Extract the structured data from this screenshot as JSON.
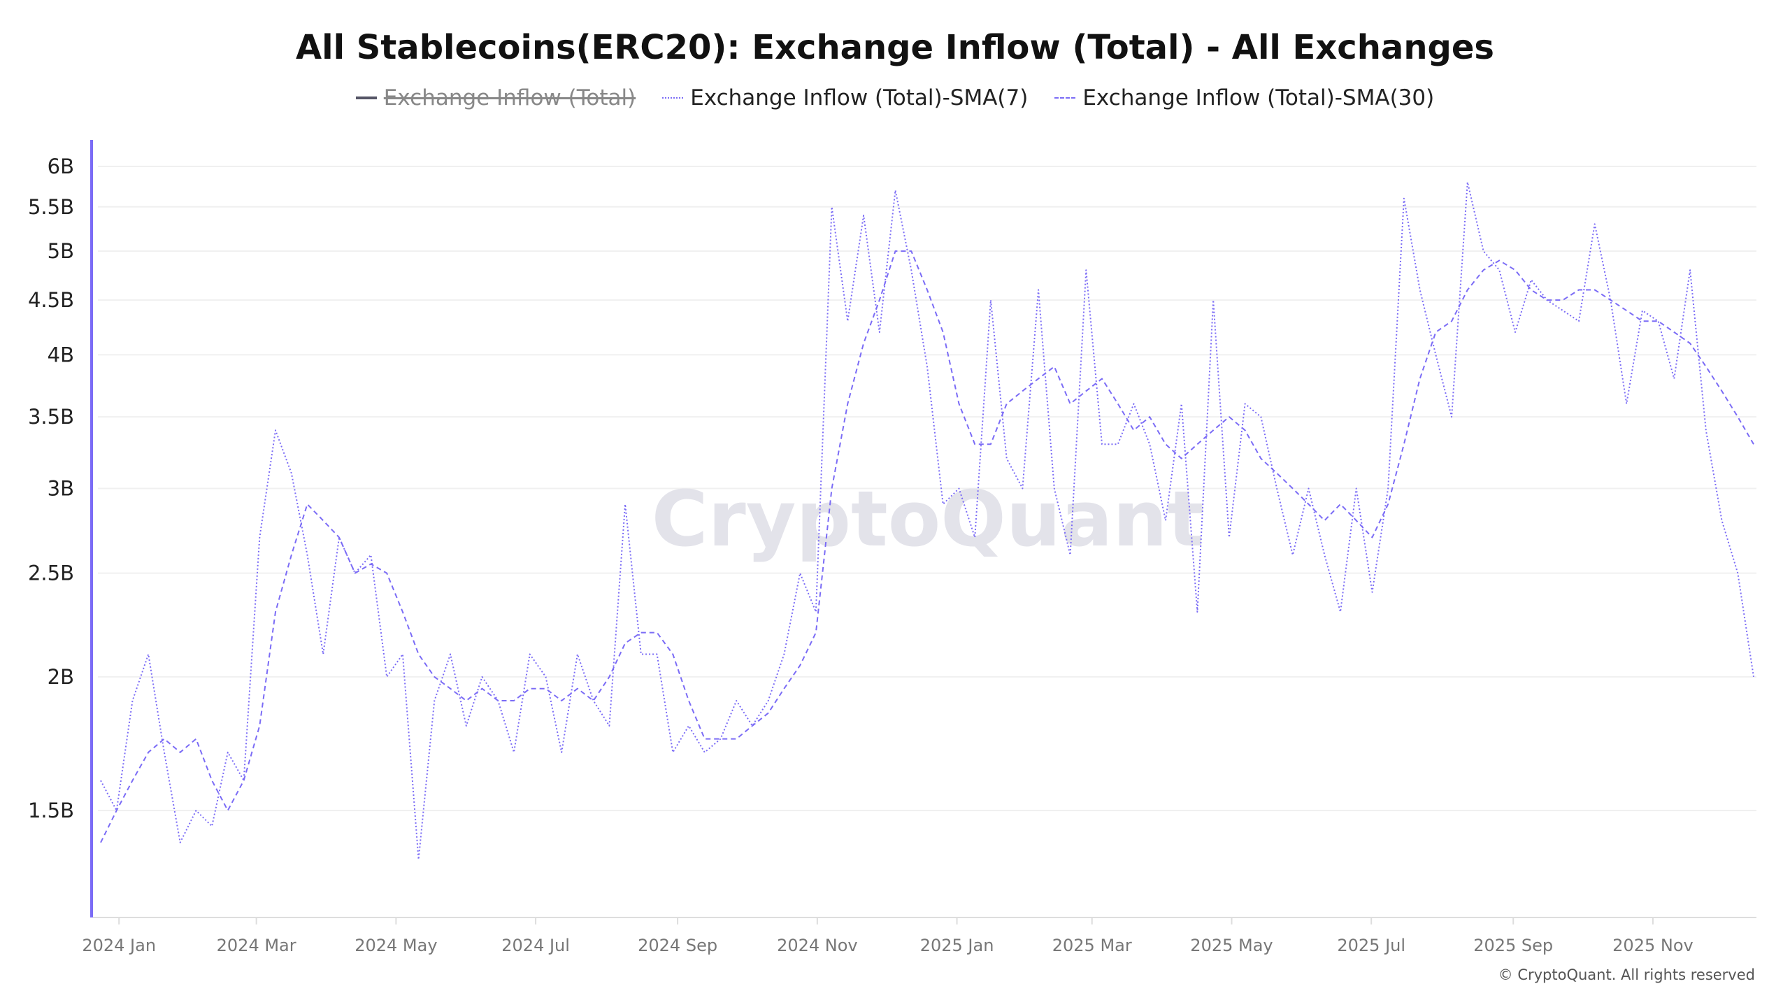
{
  "chart_data": {
    "type": "line",
    "title": "All Stablecoins(ERC20): Exchange Inflow (Total) - All Exchanges",
    "xlabel": "",
    "ylabel": "",
    "y_scale": "log",
    "ylim": [
      1.2,
      6.3
    ],
    "y_unit": "B",
    "y_ticks": [
      {
        "v": 1.5,
        "label": "1.5B"
      },
      {
        "v": 2,
        "label": "2B"
      },
      {
        "v": 2.5,
        "label": "2.5B"
      },
      {
        "v": 3,
        "label": "3B"
      },
      {
        "v": 3.5,
        "label": "3.5B"
      },
      {
        "v": 4,
        "label": "4B"
      },
      {
        "v": 4.5,
        "label": "4.5B"
      },
      {
        "v": 5,
        "label": "5B"
      },
      {
        "v": 5.5,
        "label": "5.5B"
      },
      {
        "v": 6,
        "label": "6B"
      }
    ],
    "x_range": [
      "2023-12-24",
      "2025-12-15"
    ],
    "x_ticks": [
      {
        "date": "2024-01-01",
        "label": "2024 Jan"
      },
      {
        "date": "2024-03-01",
        "label": "2024 Mar"
      },
      {
        "date": "2024-05-01",
        "label": "2024 May"
      },
      {
        "date": "2024-07-01",
        "label": "2024 Jul"
      },
      {
        "date": "2024-09-01",
        "label": "2024 Sep"
      },
      {
        "date": "2024-11-01",
        "label": "2024 Nov"
      },
      {
        "date": "2025-01-01",
        "label": "2025 Jan"
      },
      {
        "date": "2025-03-01",
        "label": "2025 Mar"
      },
      {
        "date": "2025-05-01",
        "label": "2025 May"
      },
      {
        "date": "2025-07-01",
        "label": "2025 Jul"
      },
      {
        "date": "2025-09-01",
        "label": "2025 Sep"
      },
      {
        "date": "2025-11-01",
        "label": "2025 Nov"
      }
    ],
    "grid": true,
    "legend_position": "top-center",
    "series": [
      {
        "name": "Exchange Inflow (Total)",
        "hidden": true,
        "color": "#555566",
        "style": "solid",
        "values": []
      },
      {
        "name": "Exchange Inflow (Total)-SMA(7)",
        "hidden": false,
        "color": "#7b6cf6",
        "style": "dotted",
        "values": [
          1.6,
          1.5,
          1.9,
          2.1,
          1.7,
          1.4,
          1.5,
          1.45,
          1.7,
          1.6,
          2.7,
          3.4,
          3.1,
          2.6,
          2.1,
          2.7,
          2.5,
          2.6,
          2.0,
          2.1,
          1.35,
          1.9,
          2.1,
          1.8,
          2.0,
          1.9,
          1.7,
          2.1,
          2.0,
          1.7,
          2.1,
          1.9,
          1.8,
          2.9,
          2.1,
          2.1,
          1.7,
          1.8,
          1.7,
          1.75,
          1.9,
          1.8,
          1.9,
          2.1,
          2.5,
          2.3,
          5.5,
          4.3,
          5.4,
          4.2,
          5.7,
          4.8,
          3.9,
          2.9,
          3.0,
          2.7,
          4.5,
          3.2,
          3.0,
          4.6,
          3.0,
          2.6,
          4.8,
          3.3,
          3.3,
          3.6,
          3.3,
          2.8,
          3.6,
          2.3,
          4.5,
          2.7,
          3.6,
          3.5,
          3.0,
          2.6,
          3.0,
          2.6,
          2.3,
          3.0,
          2.4,
          3.0,
          5.6,
          4.6,
          4.0,
          3.5,
          5.8,
          5.0,
          4.8,
          4.2,
          4.7,
          4.5,
          4.4,
          4.3,
          5.3,
          4.5,
          3.6,
          4.4,
          4.3,
          3.8,
          4.8,
          3.4,
          2.8,
          2.5,
          2.0
        ]
      },
      {
        "name": "Exchange Inflow (Total)-SMA(30)",
        "hidden": false,
        "color": "#7b6cf6",
        "style": "dashed",
        "values": [
          1.4,
          1.5,
          1.6,
          1.7,
          1.75,
          1.7,
          1.75,
          1.6,
          1.5,
          1.6,
          1.8,
          2.3,
          2.6,
          2.9,
          2.8,
          2.7,
          2.5,
          2.55,
          2.5,
          2.3,
          2.1,
          2.0,
          1.95,
          1.9,
          1.95,
          1.9,
          1.9,
          1.95,
          1.95,
          1.9,
          1.95,
          1.9,
          2.0,
          2.15,
          2.2,
          2.2,
          2.1,
          1.9,
          1.75,
          1.75,
          1.75,
          1.8,
          1.85,
          1.95,
          2.05,
          2.2,
          3.0,
          3.6,
          4.1,
          4.5,
          5.0,
          5.0,
          4.6,
          4.2,
          3.6,
          3.3,
          3.3,
          3.6,
          3.7,
          3.8,
          3.9,
          3.6,
          3.7,
          3.8,
          3.6,
          3.4,
          3.5,
          3.3,
          3.2,
          3.3,
          3.4,
          3.5,
          3.4,
          3.2,
          3.1,
          3.0,
          2.9,
          2.8,
          2.9,
          2.8,
          2.7,
          2.9,
          3.3,
          3.8,
          4.2,
          4.3,
          4.6,
          4.8,
          4.9,
          4.8,
          4.6,
          4.5,
          4.5,
          4.6,
          4.6,
          4.5,
          4.4,
          4.3,
          4.3,
          4.2,
          4.1,
          3.9,
          3.7,
          3.5,
          3.3
        ]
      }
    ]
  },
  "legend": {
    "items": [
      "Exchange Inflow (Total)",
      "Exchange Inflow (Total)-SMA(7)",
      "Exchange Inflow (Total)-SMA(30)"
    ]
  },
  "watermark": "CryptoQuant",
  "footer": "© CryptoQuant. All rights reserved"
}
